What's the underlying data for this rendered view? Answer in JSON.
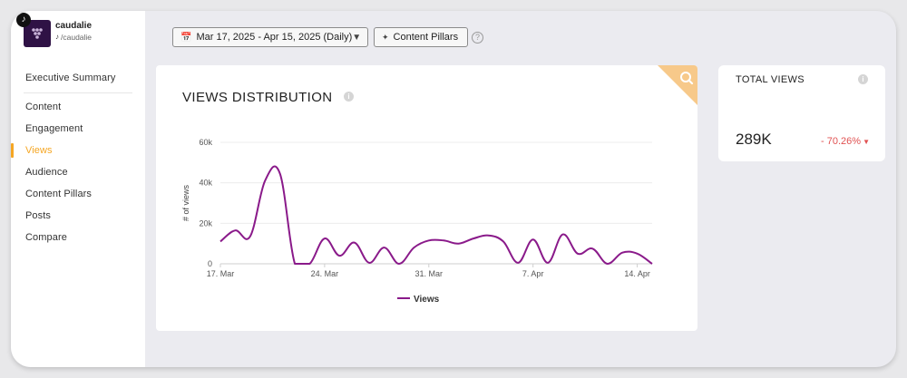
{
  "sidebar": {
    "brand_name": "caudalie",
    "brand_handle": "/caudalie",
    "items": [
      {
        "label": "Executive Summary"
      },
      {
        "label": "Content"
      },
      {
        "label": "Engagement"
      },
      {
        "label": "Views"
      },
      {
        "label": "Audience"
      },
      {
        "label": "Content Pillars"
      },
      {
        "label": "Posts"
      },
      {
        "label": "Compare"
      }
    ],
    "active_index": 3
  },
  "toolbar": {
    "date_range": "Mar 17, 2025 - Apr 15, 2025 (Daily)",
    "pillars_label": "Content Pillars",
    "help_glyph": "?"
  },
  "chart_card": {
    "title": "VIEWS DISTRIBUTION",
    "info_glyph": "i"
  },
  "stat_card": {
    "title": "TOTAL VIEWS",
    "info_glyph": "i",
    "value": "289K",
    "change": "- 70.26%",
    "change_color": "#e05252"
  },
  "colors": {
    "accent": "#f5a623",
    "series": "#8a1a8a",
    "corner": "#f7c98a"
  },
  "chart_data": {
    "type": "line",
    "title": "VIEWS DISTRIBUTION",
    "ylabel": "# of views",
    "xlabel": "",
    "ylim": [
      0,
      60000
    ],
    "yticks": [
      0,
      20000,
      40000,
      60000
    ],
    "ytick_labels": [
      "0",
      "20k",
      "40k",
      "60k"
    ],
    "xticks": [
      "17. Mar",
      "24. Mar",
      "31. Mar",
      "7. Apr",
      "14. Apr"
    ],
    "legend": "bottom",
    "grid": true,
    "x": [
      "17. Mar",
      "18. Mar",
      "19. Mar",
      "20. Mar",
      "21. Mar",
      "22. Mar",
      "23. Mar",
      "24. Mar",
      "25. Mar",
      "26. Mar",
      "27. Mar",
      "28. Mar",
      "29. Mar",
      "30. Mar",
      "31. Mar",
      "1. Apr",
      "2. Apr",
      "3. Apr",
      "4. Apr",
      "5. Apr",
      "6. Apr",
      "7. Apr",
      "8. Apr",
      "9. Apr",
      "10. Apr",
      "11. Apr",
      "12. Apr",
      "13. Apr",
      "14. Apr",
      "15. Apr"
    ],
    "series": [
      {
        "name": "Views",
        "values": [
          11000,
          16500,
          13500,
          41000,
          44500,
          0,
          0,
          12500,
          4000,
          10500,
          500,
          8000,
          0,
          8000,
          11500,
          11500,
          10000,
          12500,
          14000,
          11000,
          500,
          12000,
          500,
          14500,
          5000,
          7500,
          0,
          5500,
          5000,
          0
        ]
      }
    ]
  }
}
